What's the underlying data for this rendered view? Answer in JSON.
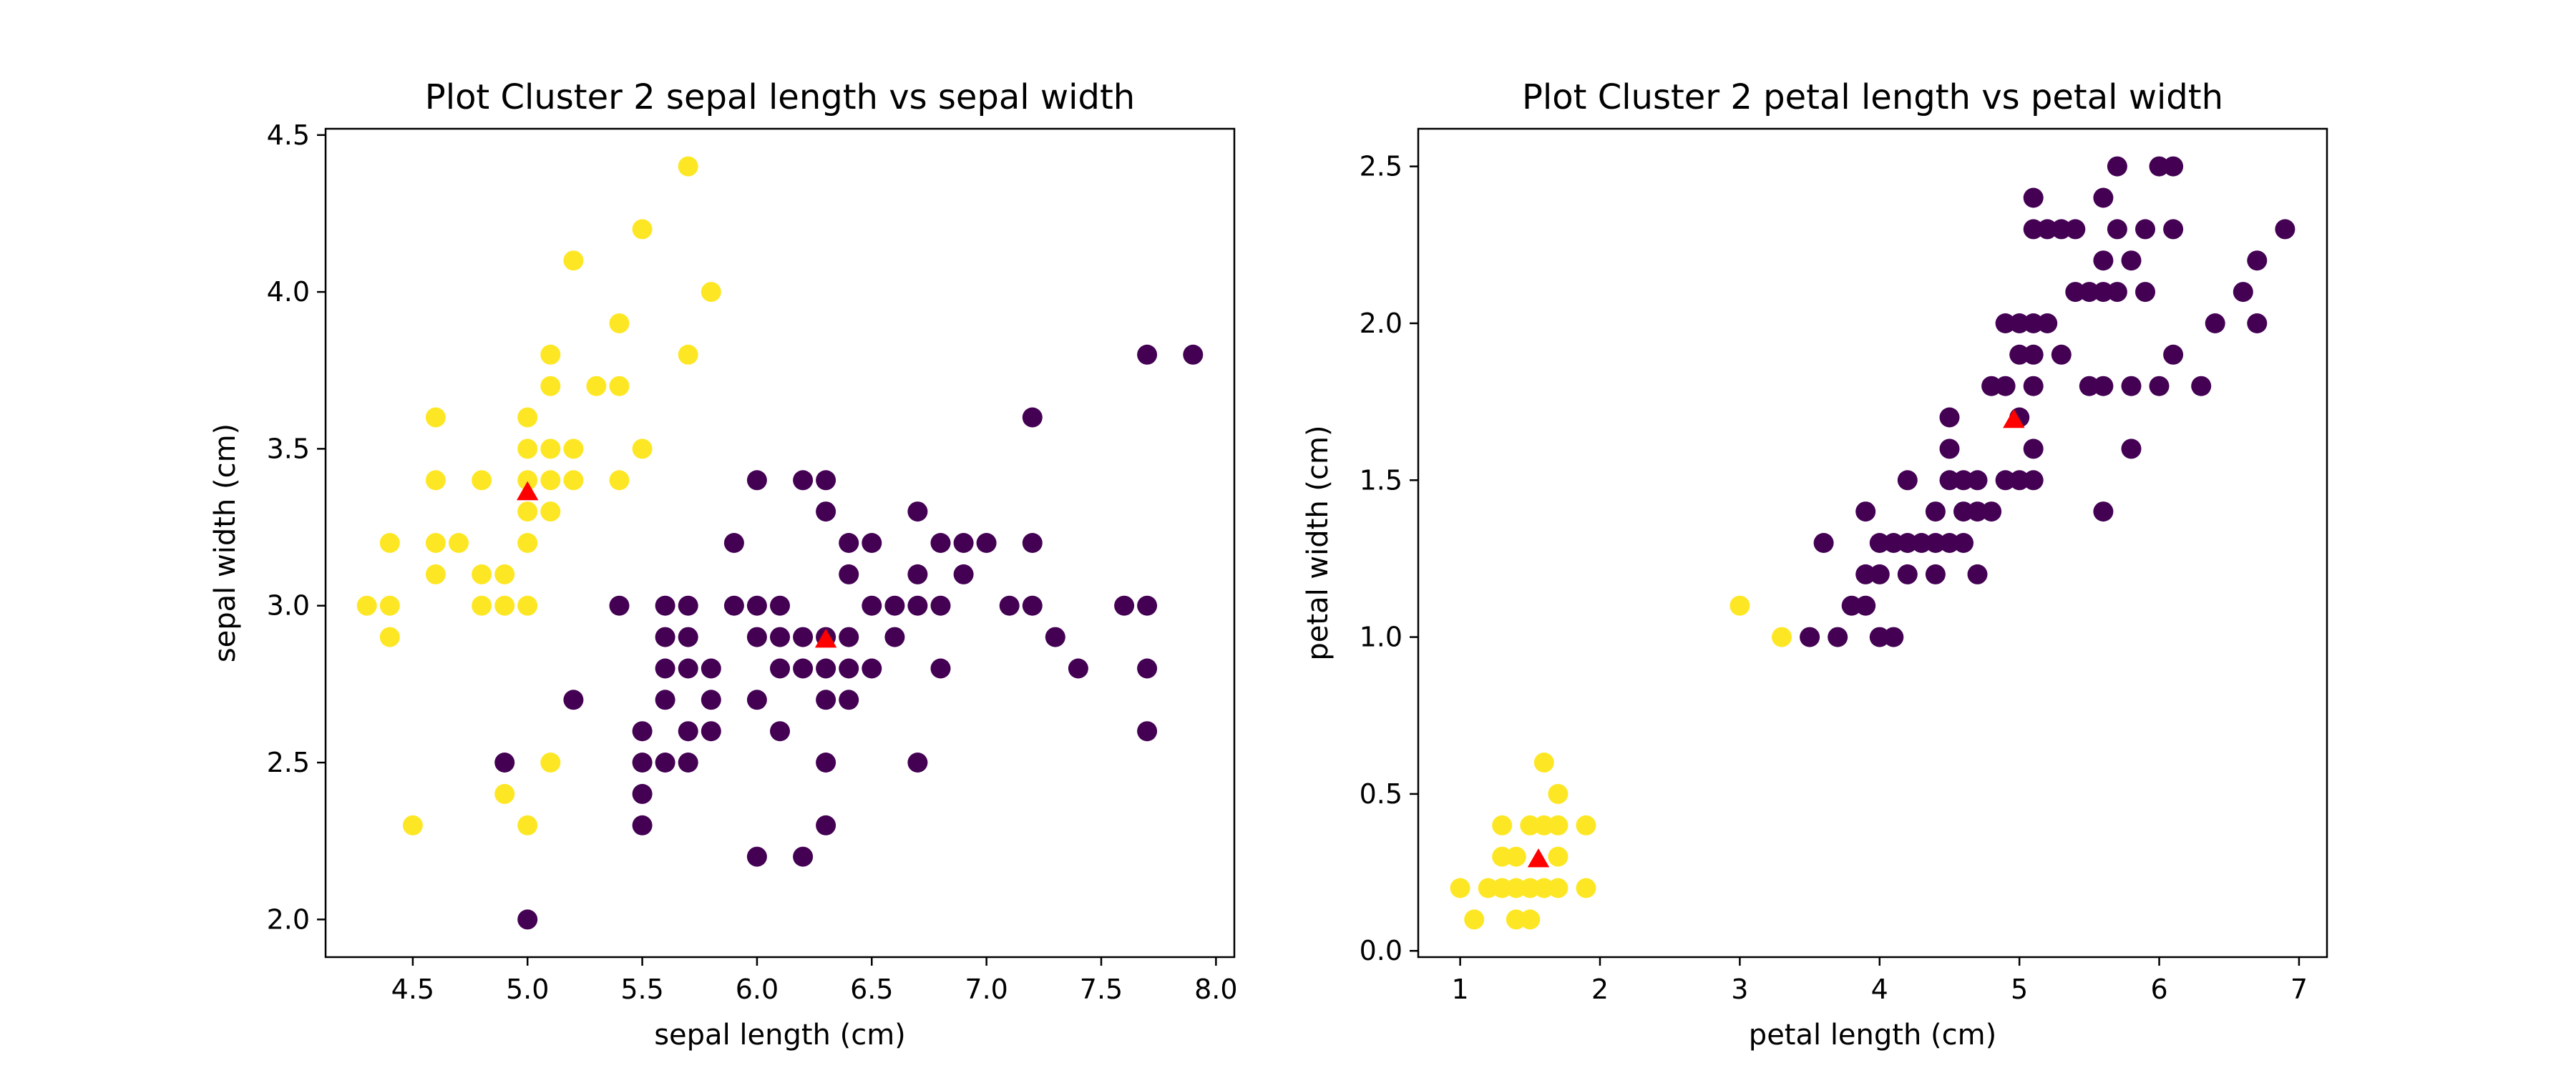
{
  "colors": {
    "cluster_0": "#440154",
    "cluster_1": "#fde725",
    "centroid": "#ff0000"
  },
  "chart_data": [
    {
      "type": "scatter",
      "title": "Plot Cluster 2 sepal length vs sepal width",
      "xlabel": "sepal length (cm)",
      "ylabel": "sepal width (cm)",
      "xlim": [
        4.12,
        8.08
      ],
      "ylim": [
        1.88,
        4.52
      ],
      "xticks": [
        4.5,
        5.0,
        5.5,
        6.0,
        6.5,
        7.0,
        7.5,
        8.0
      ],
      "xtick_labels": [
        "4.5",
        "5.0",
        "5.5",
        "6.0",
        "6.5",
        "7.0",
        "7.5",
        "8.0"
      ],
      "yticks": [
        2.0,
        2.5,
        3.0,
        3.5,
        4.0,
        4.5
      ],
      "ytick_labels": [
        "2.0",
        "2.5",
        "3.0",
        "3.5",
        "4.0",
        "4.5"
      ],
      "grid": false,
      "series": [
        {
          "color": "#fde725",
          "marker": "circle",
          "points": [
            [
              4.3,
              3.0
            ],
            [
              4.4,
              2.9
            ],
            [
              4.4,
              3.0
            ],
            [
              4.4,
              3.2
            ],
            [
              4.5,
              2.3
            ],
            [
              4.6,
              3.1
            ],
            [
              4.6,
              3.2
            ],
            [
              4.6,
              3.4
            ],
            [
              4.6,
              3.6
            ],
            [
              4.7,
              3.2
            ],
            [
              4.8,
              3.0
            ],
            [
              4.8,
              3.1
            ],
            [
              4.8,
              3.4
            ],
            [
              4.9,
              2.4
            ],
            [
              4.9,
              3.0
            ],
            [
              4.9,
              3.1
            ],
            [
              5.0,
              2.3
            ],
            [
              5.0,
              3.0
            ],
            [
              5.0,
              3.2
            ],
            [
              5.0,
              3.3
            ],
            [
              5.0,
              3.4
            ],
            [
              5.0,
              3.5
            ],
            [
              5.0,
              3.6
            ],
            [
              5.1,
              2.5
            ],
            [
              5.1,
              3.3
            ],
            [
              5.1,
              3.4
            ],
            [
              5.1,
              3.5
            ],
            [
              5.1,
              3.7
            ],
            [
              5.1,
              3.8
            ],
            [
              5.2,
              3.4
            ],
            [
              5.2,
              3.5
            ],
            [
              5.2,
              4.1
            ],
            [
              5.3,
              3.7
            ],
            [
              5.4,
              3.4
            ],
            [
              5.4,
              3.7
            ],
            [
              5.4,
              3.9
            ],
            [
              5.5,
              3.5
            ],
            [
              5.5,
              4.2
            ],
            [
              5.7,
              3.8
            ],
            [
              5.7,
              4.4
            ],
            [
              5.8,
              4.0
            ]
          ]
        },
        {
          "color": "#440154",
          "marker": "circle",
          "points": [
            [
              4.9,
              2.5
            ],
            [
              5.0,
              2.0
            ],
            [
              5.2,
              2.7
            ],
            [
              5.4,
              3.0
            ],
            [
              5.5,
              2.3
            ],
            [
              5.5,
              2.4
            ],
            [
              5.5,
              2.5
            ],
            [
              5.5,
              2.6
            ],
            [
              5.6,
              2.5
            ],
            [
              5.6,
              2.7
            ],
            [
              5.6,
              2.8
            ],
            [
              5.6,
              2.9
            ],
            [
              5.6,
              3.0
            ],
            [
              5.7,
              2.5
            ],
            [
              5.7,
              2.6
            ],
            [
              5.7,
              2.8
            ],
            [
              5.7,
              2.9
            ],
            [
              5.7,
              3.0
            ],
            [
              5.8,
              2.6
            ],
            [
              5.8,
              2.7
            ],
            [
              5.8,
              2.8
            ],
            [
              5.9,
              3.0
            ],
            [
              5.9,
              3.2
            ],
            [
              6.0,
              2.2
            ],
            [
              6.0,
              2.7
            ],
            [
              6.0,
              2.9
            ],
            [
              6.0,
              3.0
            ],
            [
              6.0,
              3.4
            ],
            [
              6.1,
              2.6
            ],
            [
              6.1,
              2.8
            ],
            [
              6.1,
              2.9
            ],
            [
              6.1,
              3.0
            ],
            [
              6.2,
              2.2
            ],
            [
              6.2,
              2.8
            ],
            [
              6.2,
              2.9
            ],
            [
              6.2,
              3.4
            ],
            [
              6.3,
              2.3
            ],
            [
              6.3,
              2.5
            ],
            [
              6.3,
              2.7
            ],
            [
              6.3,
              2.8
            ],
            [
              6.3,
              2.9
            ],
            [
              6.3,
              3.3
            ],
            [
              6.3,
              3.4
            ],
            [
              6.4,
              2.7
            ],
            [
              6.4,
              2.8
            ],
            [
              6.4,
              2.9
            ],
            [
              6.4,
              3.1
            ],
            [
              6.4,
              3.2
            ],
            [
              6.5,
              2.8
            ],
            [
              6.5,
              3.0
            ],
            [
              6.5,
              3.2
            ],
            [
              6.6,
              2.9
            ],
            [
              6.6,
              3.0
            ],
            [
              6.7,
              2.5
            ],
            [
              6.7,
              3.0
            ],
            [
              6.7,
              3.1
            ],
            [
              6.7,
              3.3
            ],
            [
              6.8,
              2.8
            ],
            [
              6.8,
              3.0
            ],
            [
              6.8,
              3.2
            ],
            [
              6.9,
              3.1
            ],
            [
              6.9,
              3.2
            ],
            [
              7.0,
              3.2
            ],
            [
              7.1,
              3.0
            ],
            [
              7.2,
              3.0
            ],
            [
              7.2,
              3.2
            ],
            [
              7.2,
              3.6
            ],
            [
              7.3,
              2.9
            ],
            [
              7.4,
              2.8
            ],
            [
              7.6,
              3.0
            ],
            [
              7.7,
              2.6
            ],
            [
              7.7,
              2.8
            ],
            [
              7.7,
              3.0
            ],
            [
              7.7,
              3.8
            ],
            [
              7.9,
              3.8
            ]
          ]
        }
      ],
      "centroids": [
        {
          "x": 5.0,
          "y": 3.36,
          "marker": "triangle",
          "color": "#ff0000"
        },
        {
          "x": 6.3,
          "y": 2.89,
          "marker": "triangle",
          "color": "#ff0000"
        }
      ]
    },
    {
      "type": "scatter",
      "title": "Plot Cluster 2 petal length vs petal width",
      "xlabel": "petal length (cm)",
      "ylabel": "petal width (cm)",
      "xlim": [
        0.7,
        7.2
      ],
      "ylim": [
        -0.02,
        2.62
      ],
      "xticks": [
        1,
        2,
        3,
        4,
        5,
        6,
        7
      ],
      "xtick_labels": [
        "1",
        "2",
        "3",
        "4",
        "5",
        "6",
        "7"
      ],
      "yticks": [
        0.0,
        0.5,
        1.0,
        1.5,
        2.0,
        2.5
      ],
      "ytick_labels": [
        "0.0",
        "0.5",
        "1.0",
        "1.5",
        "2.0",
        "2.5"
      ],
      "grid": false,
      "series": [
        {
          "color": "#fde725",
          "marker": "circle",
          "points": [
            [
              1.0,
              0.2
            ],
            [
              1.1,
              0.1
            ],
            [
              1.2,
              0.2
            ],
            [
              1.3,
              0.2
            ],
            [
              1.3,
              0.3
            ],
            [
              1.3,
              0.4
            ],
            [
              1.4,
              0.1
            ],
            [
              1.4,
              0.2
            ],
            [
              1.4,
              0.3
            ],
            [
              1.5,
              0.1
            ],
            [
              1.5,
              0.2
            ],
            [
              1.5,
              0.4
            ],
            [
              1.6,
              0.2
            ],
            [
              1.6,
              0.4
            ],
            [
              1.6,
              0.6
            ],
            [
              1.7,
              0.2
            ],
            [
              1.7,
              0.3
            ],
            [
              1.7,
              0.4
            ],
            [
              1.7,
              0.5
            ],
            [
              1.9,
              0.2
            ],
            [
              1.9,
              0.4
            ],
            [
              3.0,
              1.1
            ],
            [
              3.3,
              1.0
            ]
          ]
        },
        {
          "color": "#440154",
          "marker": "circle",
          "points": [
            [
              3.5,
              1.0
            ],
            [
              3.7,
              1.0
            ],
            [
              3.6,
              1.3
            ],
            [
              3.8,
              1.1
            ],
            [
              3.9,
              1.1
            ],
            [
              3.9,
              1.2
            ],
            [
              3.9,
              1.4
            ],
            [
              4.0,
              1.0
            ],
            [
              4.0,
              1.2
            ],
            [
              4.0,
              1.3
            ],
            [
              4.1,
              1.0
            ],
            [
              4.1,
              1.3
            ],
            [
              4.2,
              1.2
            ],
            [
              4.2,
              1.3
            ],
            [
              4.2,
              1.5
            ],
            [
              4.3,
              1.3
            ],
            [
              4.4,
              1.2
            ],
            [
              4.4,
              1.3
            ],
            [
              4.4,
              1.4
            ],
            [
              4.5,
              1.3
            ],
            [
              4.5,
              1.5
            ],
            [
              4.5,
              1.6
            ],
            [
              4.5,
              1.7
            ],
            [
              4.6,
              1.3
            ],
            [
              4.6,
              1.4
            ],
            [
              4.6,
              1.5
            ],
            [
              4.7,
              1.2
            ],
            [
              4.7,
              1.4
            ],
            [
              4.7,
              1.5
            ],
            [
              4.8,
              1.4
            ],
            [
              4.8,
              1.8
            ],
            [
              4.9,
              1.5
            ],
            [
              4.9,
              1.8
            ],
            [
              4.9,
              2.0
            ],
            [
              5.0,
              1.5
            ],
            [
              5.0,
              1.7
            ],
            [
              5.0,
              1.9
            ],
            [
              5.0,
              2.0
            ],
            [
              5.1,
              1.5
            ],
            [
              5.1,
              1.6
            ],
            [
              5.1,
              1.8
            ],
            [
              5.1,
              1.9
            ],
            [
              5.1,
              2.0
            ],
            [
              5.1,
              2.3
            ],
            [
              5.1,
              2.4
            ],
            [
              5.2,
              2.0
            ],
            [
              5.2,
              2.3
            ],
            [
              5.3,
              1.9
            ],
            [
              5.3,
              2.3
            ],
            [
              5.4,
              2.1
            ],
            [
              5.4,
              2.3
            ],
            [
              5.5,
              1.8
            ],
            [
              5.5,
              2.1
            ],
            [
              5.6,
              1.4
            ],
            [
              5.6,
              1.8
            ],
            [
              5.6,
              2.1
            ],
            [
              5.6,
              2.2
            ],
            [
              5.6,
              2.4
            ],
            [
              5.7,
              2.1
            ],
            [
              5.7,
              2.3
            ],
            [
              5.7,
              2.5
            ],
            [
              5.8,
              1.6
            ],
            [
              5.8,
              1.8
            ],
            [
              5.8,
              2.2
            ],
            [
              5.9,
              2.1
            ],
            [
              5.9,
              2.3
            ],
            [
              6.0,
              1.8
            ],
            [
              6.0,
              2.5
            ],
            [
              6.1,
              1.9
            ],
            [
              6.1,
              2.3
            ],
            [
              6.1,
              2.5
            ],
            [
              6.3,
              1.8
            ],
            [
              6.4,
              2.0
            ],
            [
              6.6,
              2.1
            ],
            [
              6.7,
              2.0
            ],
            [
              6.7,
              2.2
            ],
            [
              6.9,
              2.3
            ]
          ]
        }
      ],
      "centroids": [
        {
          "x": 1.56,
          "y": 0.29,
          "marker": "triangle",
          "color": "#ff0000"
        },
        {
          "x": 4.96,
          "y": 1.69,
          "marker": "triangle",
          "color": "#ff0000"
        }
      ]
    }
  ]
}
